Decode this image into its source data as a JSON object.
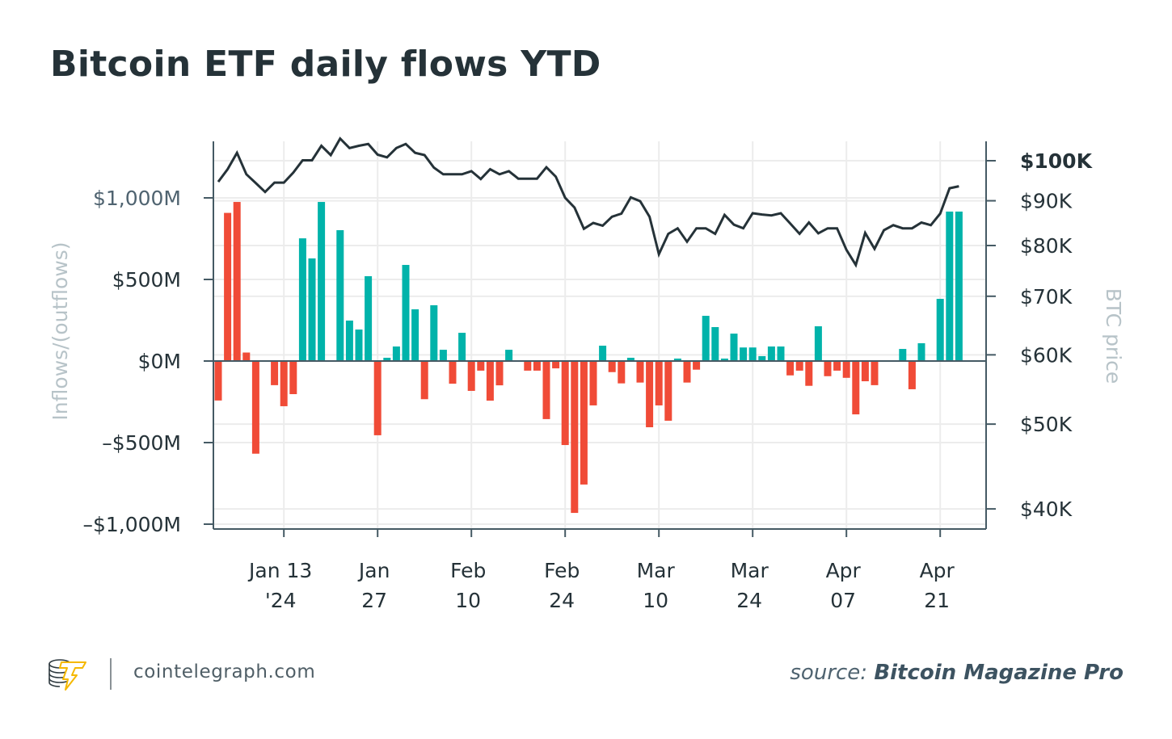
{
  "title": "Bitcoin ETF daily flows YTD",
  "footer": {
    "site": "cointelegraph.com",
    "source_prefix": "source:",
    "source_name": "Bitcoin Magazine Pro",
    "logo_icon": "cointelegraph-coin-stack-logo"
  },
  "chart_data": {
    "type": "bar+line",
    "title": "Bitcoin ETF daily flows YTD",
    "ylabel_left": "Inflows/(outflows)",
    "ylabel_right": "BTC price",
    "left_axis": {
      "ylim": [
        -1030,
        1350
      ],
      "unit": "$M",
      "ticks": [
        1000,
        500,
        0,
        -500,
        -1000
      ],
      "tick_labels": [
        "$1,000M",
        "$500M",
        "$0M",
        "–$500M",
        "–$1,000M"
      ]
    },
    "right_axis": {
      "scale": "log",
      "unit": "$K",
      "ylim": [
        38.5,
        107.5
      ],
      "ticks": [
        100,
        90,
        80,
        70,
        60,
        50,
        40
      ],
      "tick_labels": [
        "$100K",
        "$90K",
        "$80K",
        "$70K",
        "$60K",
        "$50K",
        "$40K"
      ]
    },
    "x_ticks": [
      {
        "date": "Jan 13",
        "line1": "Jan 13",
        "line2": "'24"
      },
      {
        "date": "Jan 27",
        "line1": "Jan",
        "line2": "27"
      },
      {
        "date": "Feb 10",
        "line1": "Feb",
        "line2": "10"
      },
      {
        "date": "Feb 24",
        "line1": "Feb",
        "line2": "24"
      },
      {
        "date": "Mar 10",
        "line1": "Mar",
        "line2": "10"
      },
      {
        "date": "Mar 24",
        "line1": "Mar",
        "line2": "24"
      },
      {
        "date": "Apr 07",
        "line1": "Apr",
        "line2": "07"
      },
      {
        "date": "Apr 21",
        "line1": "Apr",
        "line2": "21"
      }
    ],
    "grid": true,
    "colors": {
      "inflow": "#00b3aa",
      "outflow": "#f04b37",
      "price_line": "#253238",
      "axis": "#455a64",
      "grid": "#ececec"
    },
    "red_positive_dates": [
      "Jan 03",
      "Jan 06",
      "Jan 07"
    ],
    "dates": [
      "Jan 02",
      "Jan 03",
      "Jan 06",
      "Jan 07",
      "Jan 08",
      "Jan 09",
      "Jan 10",
      "Jan 13",
      "Jan 14",
      "Jan 15",
      "Jan 16",
      "Jan 17",
      "Jan 20",
      "Jan 21",
      "Jan 22",
      "Jan 23",
      "Jan 24",
      "Jan 27",
      "Jan 28",
      "Jan 29",
      "Jan 30",
      "Jan 31",
      "Feb 03",
      "Feb 04",
      "Feb 05",
      "Feb 06",
      "Feb 07",
      "Feb 10",
      "Feb 11",
      "Feb 12",
      "Feb 13",
      "Feb 14",
      "Feb 17",
      "Feb 18",
      "Feb 19",
      "Feb 20",
      "Feb 21",
      "Feb 24",
      "Feb 25",
      "Feb 26",
      "Feb 27",
      "Feb 28",
      "Mar 03",
      "Mar 04",
      "Mar 05",
      "Mar 06",
      "Mar 07",
      "Mar 10",
      "Mar 11",
      "Mar 12",
      "Mar 13",
      "Mar 14",
      "Mar 17",
      "Mar 18",
      "Mar 19",
      "Mar 20",
      "Mar 21",
      "Mar 24",
      "Mar 25",
      "Mar 26",
      "Mar 27",
      "Mar 28",
      "Mar 31",
      "Apr 01",
      "Apr 02",
      "Apr 03",
      "Apr 04",
      "Apr 07",
      "Apr 08",
      "Apr 09",
      "Apr 10",
      "Apr 11",
      "Apr 14",
      "Apr 15",
      "Apr 16",
      "Apr 17",
      "Apr 18",
      "Apr 21",
      "Apr 22",
      "Apr 23"
    ],
    "series": [
      {
        "name": "Inflows/(outflows)",
        "axis": "left",
        "type": "bar",
        "values": [
          -242,
          908,
          975,
          52,
          -568,
          null,
          -148,
          -277,
          -203,
          752,
          629,
          975,
          null,
          802,
          248,
          193,
          520,
          -455,
          20,
          89,
          589,
          317,
          -234,
          342,
          69,
          -139,
          173,
          -183,
          -59,
          -243,
          -149,
          69,
          null,
          -59,
          -59,
          -356,
          -45,
          -515,
          -931,
          -757,
          -272,
          94,
          -68,
          -137,
          20,
          -132,
          -406,
          -272,
          -366,
          15,
          -132,
          -53,
          277,
          208,
          15,
          168,
          83,
          83,
          30,
          89,
          89,
          -88,
          -59,
          -152,
          213,
          -93,
          -59,
          -103,
          -327,
          -124,
          -148,
          0,
          0,
          74,
          -173,
          109,
          null,
          381,
          916,
          916
        ]
      },
      {
        "name": "BTC price",
        "axis": "right",
        "type": "line",
        "values": [
          94.6,
          97.8,
          102.1,
          96.5,
          94.3,
          92.1,
          94.4,
          94.4,
          96.9,
          100.1,
          100.1,
          104.0,
          101.5,
          106.0,
          103.4,
          104.0,
          104.5,
          101.6,
          100.9,
          103.4,
          104.5,
          102.1,
          101.5,
          98.2,
          96.5,
          96.5,
          96.5,
          97.3,
          95.3,
          97.8,
          96.5,
          97.3,
          95.4,
          95.4,
          95.4,
          98.3,
          95.9,
          90.7,
          88.4,
          83.6,
          84.9,
          84.3,
          86.3,
          87.0,
          90.8,
          89.9,
          86.3,
          78.2,
          82.5,
          83.7,
          80.8,
          83.7,
          83.7,
          82.5,
          86.7,
          84.5,
          83.7,
          87.1,
          86.8,
          86.6,
          87.1,
          84.8,
          82.5,
          85.0,
          82.6,
          83.7,
          83.7,
          79.1,
          76.0,
          82.7,
          79.3,
          83.3,
          84.4,
          83.7,
          83.7,
          85.0,
          84.4,
          87.0,
          93.0,
          93.5
        ]
      }
    ]
  }
}
